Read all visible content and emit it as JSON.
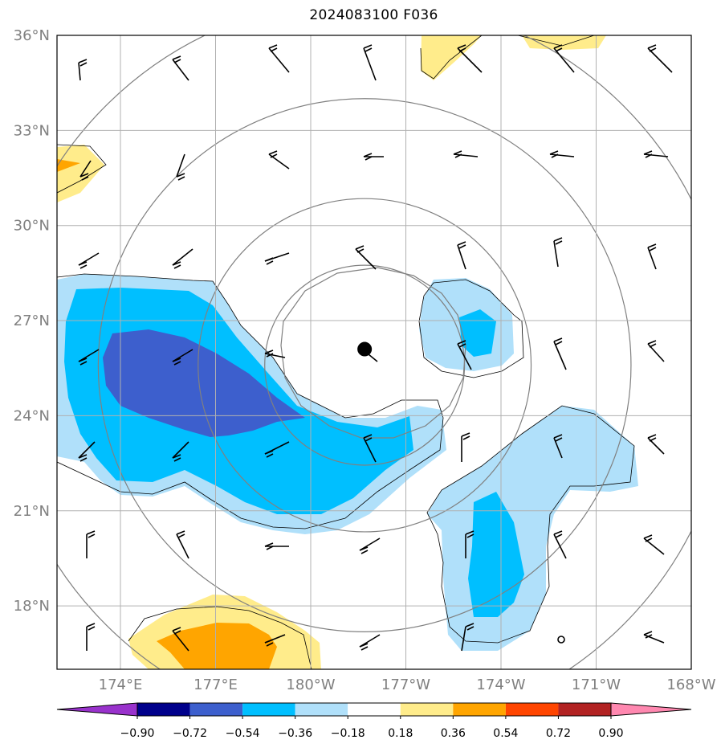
{
  "title": "2024083100 F036",
  "map": {
    "lon_range": [
      172.0,
      192.0
    ],
    "lat_range": [
      16.0,
      36.0
    ],
    "lat_ticks": [
      {
        "value": 36,
        "label": "36°N"
      },
      {
        "value": 33,
        "label": "33°N"
      },
      {
        "value": 30,
        "label": "30°N"
      },
      {
        "value": 27,
        "label": "27°N"
      },
      {
        "value": 24,
        "label": "24°N"
      },
      {
        "value": 21,
        "label": "21°N"
      },
      {
        "value": 18,
        "label": "18°N"
      }
    ],
    "lon_ticks": [
      {
        "value": 174,
        "label": "174°E"
      },
      {
        "value": 177,
        "label": "177°E"
      },
      {
        "value": 180,
        "label": "180°W"
      },
      {
        "value": 183,
        "label": "177°W"
      },
      {
        "value": 186,
        "label": "174°W"
      },
      {
        "value": 189,
        "label": "171°W"
      },
      {
        "value": 192,
        "label": "168°W"
      }
    ],
    "gridlines": true,
    "storm_center": {
      "lon": 181.7,
      "lat": 26.1
    },
    "range_rings_deg": [
      3,
      5,
      8,
      11
    ]
  },
  "colorbar": {
    "levels": [
      "−0.90",
      "−0.72",
      "−0.54",
      "−0.36",
      "−0.18",
      "0.18",
      "0.36",
      "0.54",
      "0.72",
      "0.90"
    ],
    "colors": [
      "#9932cc",
      "#00008b",
      "#3d5fcd",
      "#00bfff",
      "#b0e0fa",
      "#ffffff",
      "#ffec8b",
      "#ffa500",
      "#ff4500",
      "#b22222",
      "#ff88b0"
    ]
  }
}
